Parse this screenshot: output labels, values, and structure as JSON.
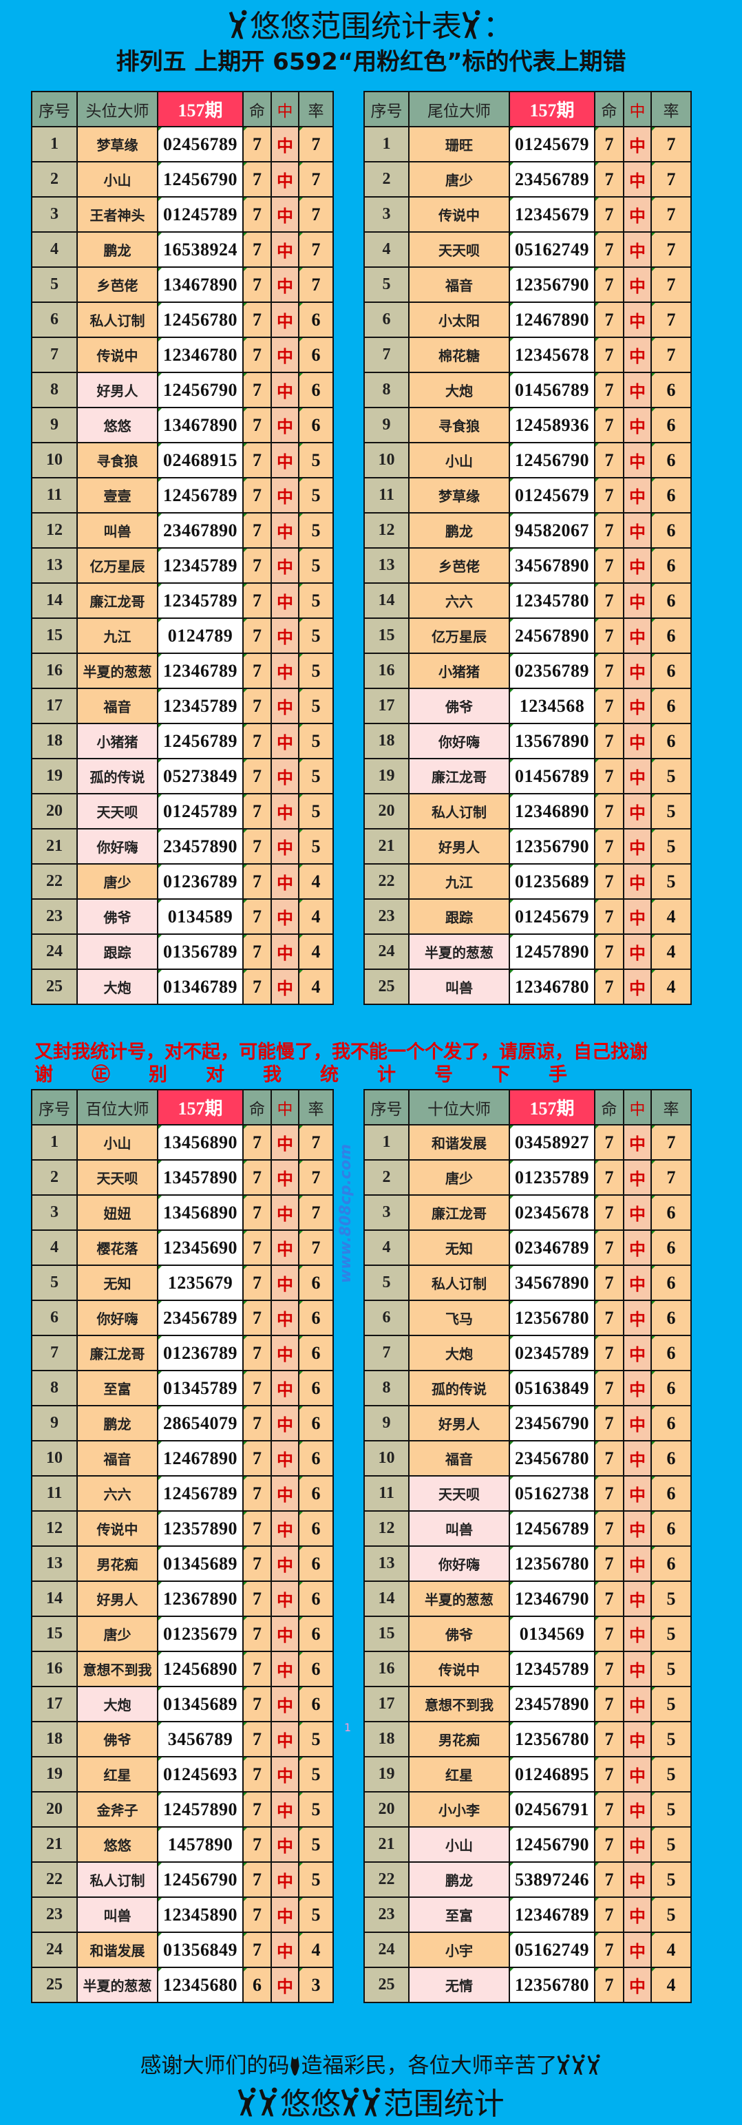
{
  "header": {
    "title": "悠悠范围统计表",
    "title_suffix": "：",
    "subtitle": "排列五  上期开   6592“用粉红色”标的代表上期错"
  },
  "colors": {
    "background": "#00b0f0",
    "period_header": "#ff3b5e",
    "header": "#86ab96",
    "name_cell": "#fccf98",
    "error_cell": "#fde1e1",
    "hit_text": "#d40000"
  },
  "icons": {
    "figure": "dancing-figure-icon",
    "horse": "horse-head-icon"
  },
  "banner": {
    "line1": "又封我统计号，对不起，可能慢了，我不能一个个发了，请原谅，自己找谢",
    "line2": "谢㊣别对我统计号下手"
  },
  "watermark": "www.808cp.com",
  "stray_mark": "1",
  "tables": [
    {
      "headers": [
        "序号",
        "头位大师",
        "157期",
        "命",
        "中",
        "率"
      ],
      "rows": [
        [
          "1",
          "梦草缘",
          "02456789",
          "7",
          "中",
          "7",
          0
        ],
        [
          "2",
          "小山",
          "12456790",
          "7",
          "中",
          "7",
          0
        ],
        [
          "3",
          "王者神头",
          "01245789",
          "7",
          "中",
          "7",
          0
        ],
        [
          "4",
          "鹏龙",
          "16538924",
          "7",
          "中",
          "7",
          0
        ],
        [
          "5",
          "乡芭佬",
          "13467890",
          "7",
          "中",
          "7",
          0
        ],
        [
          "6",
          "私人订制",
          "12456780",
          "7",
          "中",
          "6",
          0
        ],
        [
          "7",
          "传说中",
          "12346780",
          "7",
          "中",
          "6",
          0
        ],
        [
          "8",
          "好男人",
          "12456790",
          "7",
          "中",
          "6",
          1
        ],
        [
          "9",
          "悠悠",
          "13467890",
          "7",
          "中",
          "6",
          1
        ],
        [
          "10",
          "寻食狼",
          "02468915",
          "7",
          "中",
          "5",
          0
        ],
        [
          "11",
          "壹壹",
          "12456789",
          "7",
          "中",
          "5",
          0
        ],
        [
          "12",
          "叫兽",
          "23467890",
          "7",
          "中",
          "5",
          0
        ],
        [
          "13",
          "亿万星辰",
          "12345789",
          "7",
          "中",
          "5",
          0
        ],
        [
          "14",
          "廉江龙哥",
          "12345789",
          "7",
          "中",
          "5",
          0
        ],
        [
          "15",
          "九江",
          "0124789",
          "7",
          "中",
          "5",
          0
        ],
        [
          "16",
          "半夏的葱葱",
          "12346789",
          "7",
          "中",
          "5",
          0
        ],
        [
          "17",
          "福音",
          "12345789",
          "7",
          "中",
          "5",
          0
        ],
        [
          "18",
          "小猪猪",
          "12456789",
          "7",
          "中",
          "5",
          1
        ],
        [
          "19",
          "孤的传说",
          "05273849",
          "7",
          "中",
          "5",
          1
        ],
        [
          "20",
          "天天呗",
          "01245789",
          "7",
          "中",
          "5",
          1
        ],
        [
          "21",
          "你好嗨",
          "23457890",
          "7",
          "中",
          "5",
          1
        ],
        [
          "22",
          "唐少",
          "01236789",
          "7",
          "中",
          "4",
          0
        ],
        [
          "23",
          "佛爷",
          "0134589",
          "7",
          "中",
          "4",
          1
        ],
        [
          "24",
          "跟踪",
          "01356789",
          "7",
          "中",
          "4",
          1
        ],
        [
          "25",
          "大炮",
          "01346789",
          "7",
          "中",
          "4",
          1
        ]
      ]
    },
    {
      "headers": [
        "序号",
        "尾位大师",
        "157期",
        "命",
        "中",
        "率"
      ],
      "rows": [
        [
          "1",
          "珊旺",
          "01245679",
          "7",
          "中",
          "7",
          0
        ],
        [
          "2",
          "唐少",
          "23456789",
          "7",
          "中",
          "7",
          0
        ],
        [
          "3",
          "传说中",
          "12345679",
          "7",
          "中",
          "7",
          0
        ],
        [
          "4",
          "天天呗",
          "05162749",
          "7",
          "中",
          "7",
          0
        ],
        [
          "5",
          "福音",
          "12356790",
          "7",
          "中",
          "7",
          0
        ],
        [
          "6",
          "小太阳",
          "12467890",
          "7",
          "中",
          "7",
          0
        ],
        [
          "7",
          "棉花糖",
          "12345678",
          "7",
          "中",
          "7",
          0
        ],
        [
          "8",
          "大炮",
          "01456789",
          "7",
          "中",
          "6",
          0
        ],
        [
          "9",
          "寻食狼",
          "12458936",
          "7",
          "中",
          "6",
          0
        ],
        [
          "10",
          "小山",
          "12456790",
          "7",
          "中",
          "6",
          0
        ],
        [
          "11",
          "梦草缘",
          "01245679",
          "7",
          "中",
          "6",
          0
        ],
        [
          "12",
          "鹏龙",
          "94582067",
          "7",
          "中",
          "6",
          0
        ],
        [
          "13",
          "乡芭佬",
          "34567890",
          "7",
          "中",
          "6",
          0
        ],
        [
          "14",
          "六六",
          "12345780",
          "7",
          "中",
          "6",
          0
        ],
        [
          "15",
          "亿万星辰",
          "24567890",
          "7",
          "中",
          "6",
          0
        ],
        [
          "16",
          "小猪猪",
          "02356789",
          "7",
          "中",
          "6",
          0
        ],
        [
          "17",
          "佛爷",
          "1234568",
          "7",
          "中",
          "6",
          1
        ],
        [
          "18",
          "你好嗨",
          "13567890",
          "7",
          "中",
          "6",
          1
        ],
        [
          "19",
          "廉江龙哥",
          "01456789",
          "7",
          "中",
          "5",
          1
        ],
        [
          "20",
          "私人订制",
          "12346890",
          "7",
          "中",
          "5",
          0
        ],
        [
          "21",
          "好男人",
          "12356790",
          "7",
          "中",
          "5",
          0
        ],
        [
          "22",
          "九江",
          "01235689",
          "7",
          "中",
          "5",
          0
        ],
        [
          "23",
          "跟踪",
          "01245679",
          "7",
          "中",
          "4",
          0
        ],
        [
          "24",
          "半夏的葱葱",
          "12457890",
          "7",
          "中",
          "4",
          1
        ],
        [
          "25",
          "叫兽",
          "12346780",
          "7",
          "中",
          "4",
          1
        ]
      ]
    },
    {
      "headers": [
        "序号",
        "百位大师",
        "157期",
        "命",
        "中",
        "率"
      ],
      "rows": [
        [
          "1",
          "小山",
          "13456890",
          "7",
          "中",
          "7",
          0
        ],
        [
          "2",
          "天天呗",
          "13457890",
          "7",
          "中",
          "7",
          0
        ],
        [
          "3",
          "妞妞",
          "13456890",
          "7",
          "中",
          "7",
          0
        ],
        [
          "4",
          "樱花落",
          "12345690",
          "7",
          "中",
          "7",
          0
        ],
        [
          "5",
          "无知",
          "1235679",
          "7",
          "中",
          "6",
          0
        ],
        [
          "6",
          "你好嗨",
          "23456789",
          "7",
          "中",
          "6",
          0
        ],
        [
          "7",
          "廉江龙哥",
          "01236789",
          "7",
          "中",
          "6",
          0
        ],
        [
          "8",
          "至富",
          "01345789",
          "7",
          "中",
          "6",
          0
        ],
        [
          "9",
          "鹏龙",
          "28654079",
          "7",
          "中",
          "6",
          0
        ],
        [
          "10",
          "福音",
          "12467890",
          "7",
          "中",
          "6",
          0
        ],
        [
          "11",
          "六六",
          "12456789",
          "7",
          "中",
          "6",
          0
        ],
        [
          "12",
          "传说中",
          "12357890",
          "7",
          "中",
          "6",
          0
        ],
        [
          "13",
          "男花痴",
          "01345689",
          "7",
          "中",
          "6",
          0
        ],
        [
          "14",
          "好男人",
          "12367890",
          "7",
          "中",
          "6",
          0
        ],
        [
          "15",
          "唐少",
          "01235679",
          "7",
          "中",
          "6",
          0
        ],
        [
          "16",
          "意想不到我",
          "12456890",
          "7",
          "中",
          "6",
          0
        ],
        [
          "17",
          "大炮",
          "01345689",
          "7",
          "中",
          "6",
          1
        ],
        [
          "18",
          "佛爷",
          "3456789",
          "7",
          "中",
          "5",
          0
        ],
        [
          "19",
          "红星",
          "01245693",
          "7",
          "中",
          "5",
          0
        ],
        [
          "20",
          "金斧子",
          "12457890",
          "7",
          "中",
          "5",
          0
        ],
        [
          "21",
          "悠悠",
          "1457890",
          "7",
          "中",
          "5",
          0
        ],
        [
          "22",
          "私人订制",
          "12456790",
          "7",
          "中",
          "5",
          1
        ],
        [
          "23",
          "叫兽",
          "12345890",
          "7",
          "中",
          "5",
          1
        ],
        [
          "24",
          "和谐发展",
          "01356849",
          "7",
          "中",
          "4",
          0
        ],
        [
          "25",
          "半夏的葱葱",
          "12345680",
          "6",
          "中",
          "3",
          1
        ]
      ]
    },
    {
      "headers": [
        "序号",
        "十位大师",
        "157期",
        "命",
        "中",
        "率"
      ],
      "rows": [
        [
          "1",
          "和谐发展",
          "03458927",
          "7",
          "中",
          "7",
          0
        ],
        [
          "2",
          "唐少",
          "01235789",
          "7",
          "中",
          "7",
          0
        ],
        [
          "3",
          "廉江龙哥",
          "02345678",
          "7",
          "中",
          "6",
          0
        ],
        [
          "4",
          "无知",
          "02346789",
          "7",
          "中",
          "6",
          0
        ],
        [
          "5",
          "私人订制",
          "34567890",
          "7",
          "中",
          "6",
          0
        ],
        [
          "6",
          "飞马",
          "12356780",
          "7",
          "中",
          "6",
          0
        ],
        [
          "7",
          "大炮",
          "02345789",
          "7",
          "中",
          "6",
          0
        ],
        [
          "8",
          "孤的传说",
          "05163849",
          "7",
          "中",
          "6",
          0
        ],
        [
          "9",
          "好男人",
          "23456790",
          "7",
          "中",
          "6",
          0
        ],
        [
          "10",
          "福音",
          "23456780",
          "7",
          "中",
          "6",
          0
        ],
        [
          "11",
          "天天呗",
          "05162738",
          "7",
          "中",
          "6",
          1
        ],
        [
          "12",
          "叫兽",
          "12456789",
          "7",
          "中",
          "6",
          1
        ],
        [
          "13",
          "你好嗨",
          "12356780",
          "7",
          "中",
          "6",
          1
        ],
        [
          "14",
          "半夏的葱葱",
          "12346790",
          "7",
          "中",
          "5",
          0
        ],
        [
          "15",
          "佛爷",
          "0134569",
          "7",
          "中",
          "5",
          0
        ],
        [
          "16",
          "传说中",
          "12345789",
          "7",
          "中",
          "5",
          0
        ],
        [
          "17",
          "意想不到我",
          "23457890",
          "7",
          "中",
          "5",
          0
        ],
        [
          "18",
          "男花痴",
          "12356780",
          "7",
          "中",
          "5",
          0
        ],
        [
          "19",
          "红星",
          "01246895",
          "7",
          "中",
          "5",
          0
        ],
        [
          "20",
          "小小李",
          "02456791",
          "7",
          "中",
          "5",
          0
        ],
        [
          "21",
          "小山",
          "12456790",
          "7",
          "中",
          "5",
          1
        ],
        [
          "22",
          "鹏龙",
          "53897246",
          "7",
          "中",
          "5",
          1
        ],
        [
          "23",
          "至富",
          "12346789",
          "7",
          "中",
          "5",
          1
        ],
        [
          "24",
          "小宇",
          "05162749",
          "7",
          "中",
          "4",
          0
        ],
        [
          "25",
          "无情",
          "12356780",
          "7",
          "中",
          "4",
          1
        ]
      ]
    }
  ],
  "footer": {
    "line1_a": "感谢大师们的码",
    "line1_b": "造福彩民，各位大师辛苦了",
    "line2_a": "悠悠",
    "line2_b": "范围统计"
  }
}
